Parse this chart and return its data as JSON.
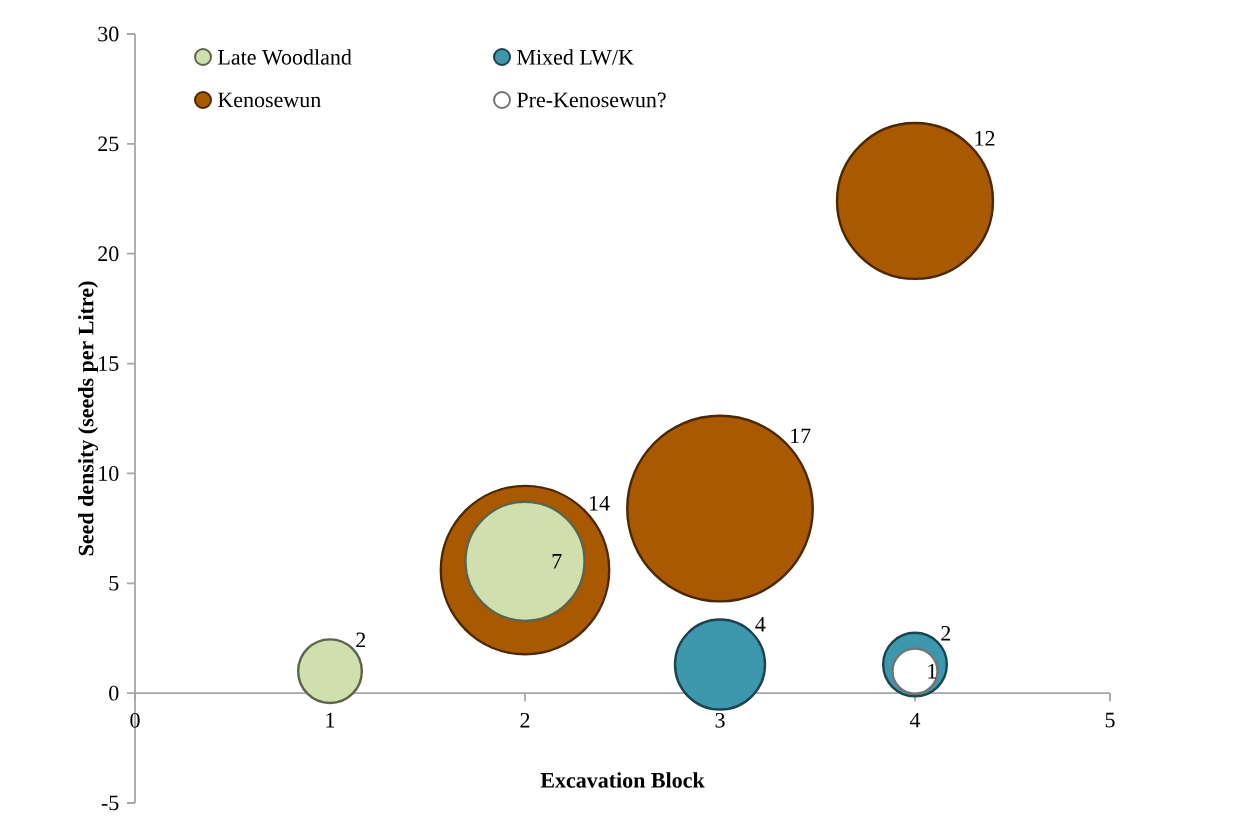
{
  "chart_data": {
    "type": "bubble",
    "xlabel": "Excavation Block",
    "ylabel": "Seed density (seeds per Litre)",
    "series": [
      {
        "name": "Late Woodland",
        "color": "#cfdfad",
        "x": [
          1,
          2
        ],
        "values": [
          1.0,
          6.0
        ],
        "sizes": [
          2,
          7
        ],
        "value_labels": [
          "2",
          "7"
        ]
      },
      {
        "name": "Mixed LW/K",
        "color": "#3d97ad",
        "x": [
          3,
          4
        ],
        "values": [
          1.3,
          1.3
        ],
        "sizes": [
          4,
          2
        ],
        "value_labels": [
          "4",
          "2"
        ]
      },
      {
        "name": "Kenosewun",
        "color": "#a95900",
        "x": [
          2,
          3,
          4
        ],
        "values": [
          5.6,
          8.4,
          22.4
        ],
        "sizes": [
          14,
          17,
          12
        ],
        "value_labels": [
          "14",
          "17",
          "12"
        ]
      },
      {
        "name": "Pre-Kenosewun?",
        "color": "#ffffff",
        "x": [
          4
        ],
        "values": [
          1.0
        ],
        "sizes": [
          1
        ],
        "value_labels": [
          "1"
        ]
      }
    ],
    "xlim": [
      0,
      5
    ],
    "xticks": [
      0,
      1,
      2,
      3,
      4,
      5
    ],
    "ylim": [
      -5,
      30
    ],
    "yticks": [
      -5,
      0,
      5,
      10,
      15,
      20,
      25,
      30
    ],
    "legend": "top left",
    "grid": false
  }
}
